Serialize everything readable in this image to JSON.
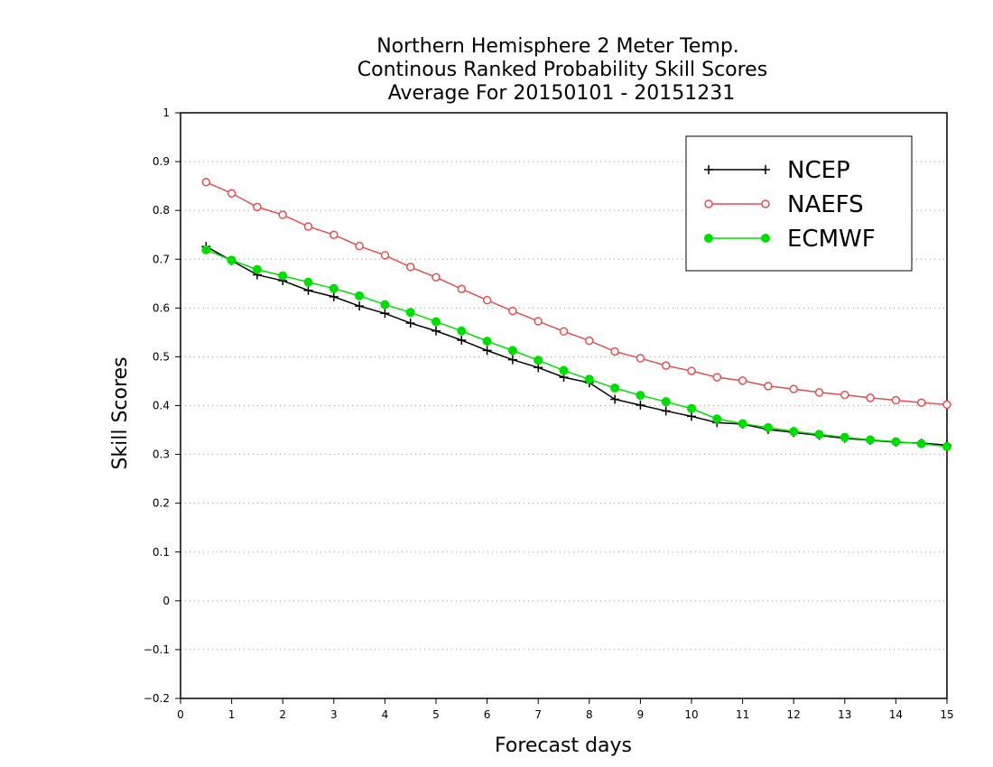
{
  "chart_data": {
    "type": "line",
    "title": [
      "Northern Hemisphere 2 Meter Temp.",
      "Continous Ranked Probability Skill Scores",
      "Average For 20150101 - 20151231"
    ],
    "xlabel": "Forecast days",
    "ylabel": "Skill Scores",
    "xlim": [
      0,
      15
    ],
    "ylim": [
      -0.2,
      1
    ],
    "xticks": [
      "0",
      "1",
      "2",
      "3",
      "4",
      "5",
      "6",
      "7",
      "8",
      "9",
      "10",
      "11",
      "12",
      "13",
      "14",
      "15"
    ],
    "yticks": [
      "-0.2",
      "-0.1",
      "0",
      "0.1",
      "0.2",
      "0.3",
      "0.4",
      "0.5",
      "0.6",
      "0.7",
      "0.8",
      "0.9",
      "1"
    ],
    "grid": "horizontal dotted",
    "legend_position": "top-right",
    "x": [
      0.5,
      1,
      1.5,
      2,
      2.5,
      3,
      3.5,
      4,
      4.5,
      5,
      5.5,
      6,
      6.5,
      7,
      7.5,
      8,
      8.5,
      9,
      9.5,
      10,
      10.5,
      11,
      11.5,
      12,
      12.5,
      13,
      13.5,
      14,
      14.5,
      15
    ],
    "series": [
      {
        "name": "NCEP",
        "color": "#000000",
        "marker": "plus",
        "values": [
          0.726,
          0.697,
          0.668,
          0.656,
          0.636,
          0.623,
          0.604,
          0.589,
          0.569,
          0.553,
          0.534,
          0.513,
          0.494,
          0.478,
          0.458,
          0.447,
          0.413,
          0.401,
          0.389,
          0.378,
          0.365,
          0.362,
          0.351,
          0.345,
          0.339,
          0.333,
          0.329,
          0.325,
          0.323,
          0.319
        ]
      },
      {
        "name": "NAEFS",
        "color": "#e05050",
        "marker": "open-circle",
        "values": [
          0.858,
          0.835,
          0.807,
          0.791,
          0.767,
          0.75,
          0.727,
          0.708,
          0.684,
          0.663,
          0.639,
          0.616,
          0.594,
          0.573,
          0.552,
          0.533,
          0.511,
          0.497,
          0.482,
          0.471,
          0.458,
          0.451,
          0.44,
          0.434,
          0.427,
          0.422,
          0.416,
          0.411,
          0.406,
          0.402
        ]
      },
      {
        "name": "ECMWF",
        "color": "#00dd00",
        "marker": "filled-circle",
        "values": [
          0.719,
          0.698,
          0.679,
          0.666,
          0.653,
          0.64,
          0.625,
          0.607,
          0.591,
          0.572,
          0.553,
          0.532,
          0.513,
          0.493,
          0.472,
          0.454,
          0.436,
          0.421,
          0.408,
          0.394,
          0.373,
          0.363,
          0.355,
          0.347,
          0.341,
          0.335,
          0.33,
          0.326,
          0.322,
          0.316
        ]
      }
    ]
  }
}
